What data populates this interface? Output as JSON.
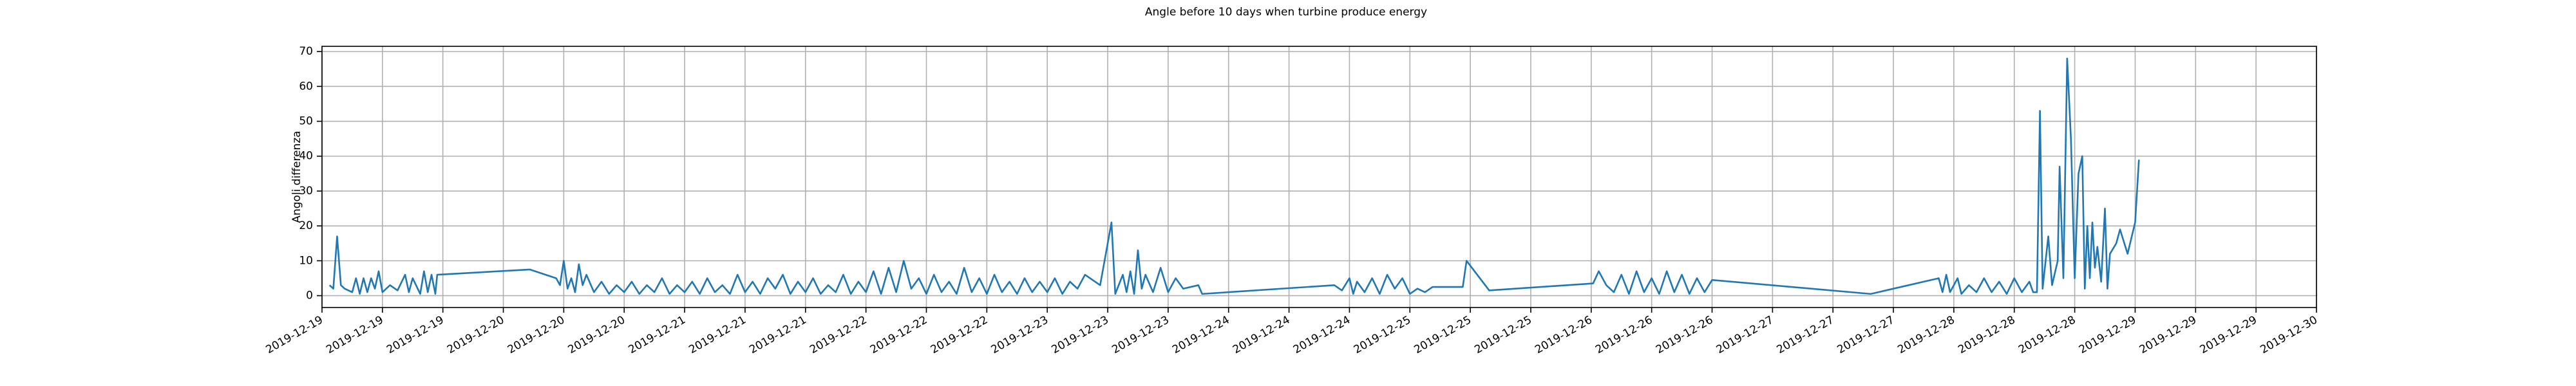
{
  "chart_data": {
    "type": "line",
    "title": "Angle before 10 days when turbine produce energy",
    "y_label": "Angoli differenza",
    "color": "#1f77b4",
    "grid": true,
    "xlim": [
      "2019-12-19 00:00",
      "2019-12-30 00:00"
    ],
    "ylim": [
      -3.4,
      71.5
    ],
    "yticks": [
      0,
      10,
      20,
      30,
      40,
      50,
      60,
      70
    ],
    "xticks": [
      {
        "value": "2019-12-19 00:00",
        "label": "2019-12-19"
      },
      {
        "value": "2019-12-19 08:00",
        "label": "2019-12-19"
      },
      {
        "value": "2019-12-19 16:00",
        "label": "2019-12-19"
      },
      {
        "value": "2019-12-20 00:00",
        "label": "2019-12-20"
      },
      {
        "value": "2019-12-20 08:00",
        "label": "2019-12-20"
      },
      {
        "value": "2019-12-20 16:00",
        "label": "2019-12-20"
      },
      {
        "value": "2019-12-21 00:00",
        "label": "2019-12-21"
      },
      {
        "value": "2019-12-21 08:00",
        "label": "2019-12-21"
      },
      {
        "value": "2019-12-21 16:00",
        "label": "2019-12-21"
      },
      {
        "value": "2019-12-22 00:00",
        "label": "2019-12-22"
      },
      {
        "value": "2019-12-22 08:00",
        "label": "2019-12-22"
      },
      {
        "value": "2019-12-22 16:00",
        "label": "2019-12-22"
      },
      {
        "value": "2019-12-23 00:00",
        "label": "2019-12-23"
      },
      {
        "value": "2019-12-23 08:00",
        "label": "2019-12-23"
      },
      {
        "value": "2019-12-23 16:00",
        "label": "2019-12-23"
      },
      {
        "value": "2019-12-24 00:00",
        "label": "2019-12-24"
      },
      {
        "value": "2019-12-24 08:00",
        "label": "2019-12-24"
      },
      {
        "value": "2019-12-24 16:00",
        "label": "2019-12-24"
      },
      {
        "value": "2019-12-25 00:00",
        "label": "2019-12-25"
      },
      {
        "value": "2019-12-25 08:00",
        "label": "2019-12-25"
      },
      {
        "value": "2019-12-25 16:00",
        "label": "2019-12-25"
      },
      {
        "value": "2019-12-26 00:00",
        "label": "2019-12-26"
      },
      {
        "value": "2019-12-26 08:00",
        "label": "2019-12-26"
      },
      {
        "value": "2019-12-26 16:00",
        "label": "2019-12-26"
      },
      {
        "value": "2019-12-27 00:00",
        "label": "2019-12-27"
      },
      {
        "value": "2019-12-27 08:00",
        "label": "2019-12-27"
      },
      {
        "value": "2019-12-27 16:00",
        "label": "2019-12-27"
      },
      {
        "value": "2019-12-28 00:00",
        "label": "2019-12-28"
      },
      {
        "value": "2019-12-28 08:00",
        "label": "2019-12-28"
      },
      {
        "value": "2019-12-28 16:00",
        "label": "2019-12-28"
      },
      {
        "value": "2019-12-29 00:00",
        "label": "2019-12-29"
      },
      {
        "value": "2019-12-29 08:00",
        "label": "2019-12-29"
      },
      {
        "value": "2019-12-29 16:00",
        "label": "2019-12-29"
      },
      {
        "value": "2019-12-30 00:00",
        "label": "2019-12-30"
      }
    ],
    "x": [
      "2019-12-19 01:00",
      "2019-12-19 01:30",
      "2019-12-19 02:00",
      "2019-12-19 02:30",
      "2019-12-19 03:00",
      "2019-12-19 04:00",
      "2019-12-19 04:30",
      "2019-12-19 05:00",
      "2019-12-19 05:30",
      "2019-12-19 06:00",
      "2019-12-19 06:30",
      "2019-12-19 07:00",
      "2019-12-19 07:30",
      "2019-12-19 08:00",
      "2019-12-19 09:00",
      "2019-12-19 10:00",
      "2019-12-19 11:00",
      "2019-12-19 11:30",
      "2019-12-19 12:00",
      "2019-12-19 13:00",
      "2019-12-19 13:30",
      "2019-12-19 14:00",
      "2019-12-19 14:30",
      "2019-12-19 15:00",
      "2019-12-19 15:15",
      "2019-12-20 03:30",
      "2019-12-20 07:00",
      "2019-12-20 07:30",
      "2019-12-20 08:00",
      "2019-12-20 08:30",
      "2019-12-20 09:00",
      "2019-12-20 09:30",
      "2019-12-20 10:00",
      "2019-12-20 10:30",
      "2019-12-20 11:00",
      "2019-12-20 12:00",
      "2019-12-20 13:00",
      "2019-12-20 14:00",
      "2019-12-20 15:00",
      "2019-12-20 16:00",
      "2019-12-20 17:00",
      "2019-12-20 18:00",
      "2019-12-20 19:00",
      "2019-12-20 20:00",
      "2019-12-20 21:00",
      "2019-12-20 22:00",
      "2019-12-20 23:00",
      "2019-12-21 00:00",
      "2019-12-21 01:00",
      "2019-12-21 02:00",
      "2019-12-21 03:00",
      "2019-12-21 04:00",
      "2019-12-21 05:00",
      "2019-12-21 06:00",
      "2019-12-21 07:00",
      "2019-12-21 08:00",
      "2019-12-21 09:00",
      "2019-12-21 10:00",
      "2019-12-21 11:00",
      "2019-12-21 12:00",
      "2019-12-21 13:00",
      "2019-12-21 14:00",
      "2019-12-21 15:00",
      "2019-12-21 16:00",
      "2019-12-21 17:00",
      "2019-12-21 18:00",
      "2019-12-21 19:00",
      "2019-12-21 20:00",
      "2019-12-21 21:00",
      "2019-12-21 22:00",
      "2019-12-21 23:00",
      "2019-12-22 00:00",
      "2019-12-22 01:00",
      "2019-12-22 02:00",
      "2019-12-22 03:00",
      "2019-12-22 04:00",
      "2019-12-22 05:00",
      "2019-12-22 06:00",
      "2019-12-22 07:00",
      "2019-12-22 08:00",
      "2019-12-22 09:00",
      "2019-12-22 10:00",
      "2019-12-22 11:00",
      "2019-12-22 12:00",
      "2019-12-22 13:00",
      "2019-12-22 14:00",
      "2019-12-22 15:00",
      "2019-12-22 16:00",
      "2019-12-22 17:00",
      "2019-12-22 18:00",
      "2019-12-22 19:00",
      "2019-12-22 20:00",
      "2019-12-22 21:00",
      "2019-12-22 22:00",
      "2019-12-22 23:00",
      "2019-12-23 00:00",
      "2019-12-23 01:00",
      "2019-12-23 02:00",
      "2019-12-23 03:00",
      "2019-12-23 04:00",
      "2019-12-23 05:00",
      "2019-12-23 07:00",
      "2019-12-23 08:30",
      "2019-12-23 09:00",
      "2019-12-23 10:00",
      "2019-12-23 10:30",
      "2019-12-23 11:00",
      "2019-12-23 11:30",
      "2019-12-23 12:00",
      "2019-12-23 12:30",
      "2019-12-23 13:00",
      "2019-12-23 14:00",
      "2019-12-23 15:00",
      "2019-12-23 16:00",
      "2019-12-23 17:00",
      "2019-12-23 18:00",
      "2019-12-23 20:00",
      "2019-12-23 20:30",
      "2019-12-24 14:00",
      "2019-12-24 15:00",
      "2019-12-24 16:00",
      "2019-12-24 16:30",
      "2019-12-24 17:00",
      "2019-12-24 18:00",
      "2019-12-24 19:00",
      "2019-12-24 20:00",
      "2019-12-24 21:00",
      "2019-12-24 22:00",
      "2019-12-24 23:00",
      "2019-12-25 00:00",
      "2019-12-25 01:00",
      "2019-12-25 02:00",
      "2019-12-25 03:00",
      "2019-12-25 07:00",
      "2019-12-25 07:30",
      "2019-12-25 10:30",
      "2019-12-26 00:15",
      "2019-12-26 01:00",
      "2019-12-26 02:00",
      "2019-12-26 03:00",
      "2019-12-26 04:00",
      "2019-12-26 05:00",
      "2019-12-26 06:00",
      "2019-12-26 07:00",
      "2019-12-26 08:00",
      "2019-12-26 09:00",
      "2019-12-26 10:00",
      "2019-12-26 11:00",
      "2019-12-26 12:00",
      "2019-12-26 13:00",
      "2019-12-26 14:00",
      "2019-12-26 15:00",
      "2019-12-26 16:00",
      "2019-12-27 13:00",
      "2019-12-27 22:00",
      "2019-12-27 22:30",
      "2019-12-27 23:00",
      "2019-12-27 23:30",
      "2019-12-28 00:30",
      "2019-12-28 01:00",
      "2019-12-28 02:00",
      "2019-12-28 03:00",
      "2019-12-28 04:00",
      "2019-12-28 05:00",
      "2019-12-28 06:00",
      "2019-12-28 07:00",
      "2019-12-28 08:00",
      "2019-12-28 09:00",
      "2019-12-28 10:00",
      "2019-12-28 10:30",
      "2019-12-28 11:00",
      "2019-12-28 11:24",
      "2019-12-28 11:45",
      "2019-12-28 12:30",
      "2019-12-28 13:00",
      "2019-12-28 13:45",
      "2019-12-28 14:00",
      "2019-12-28 14:30",
      "2019-12-28 15:00",
      "2019-12-28 15:30",
      "2019-12-28 16:00",
      "2019-12-28 16:30",
      "2019-12-28 17:00",
      "2019-12-28 17:20",
      "2019-12-28 17:40",
      "2019-12-28 18:00",
      "2019-12-28 18:20",
      "2019-12-28 18:40",
      "2019-12-28 19:00",
      "2019-12-28 19:30",
      "2019-12-28 20:00",
      "2019-12-28 20:20",
      "2019-12-28 20:40",
      "2019-12-28 21:30",
      "2019-12-28 22:00",
      "2019-12-28 23:00",
      "2019-12-29 00:00",
      "2019-12-29 00:30"
    ],
    "values": [
      3,
      2,
      17,
      3,
      2,
      1,
      5,
      0.5,
      5,
      1,
      5,
      2,
      7,
      1,
      3,
      1.5,
      6,
      1,
      5,
      0.5,
      7,
      1,
      6,
      0.5,
      6,
      7.5,
      5,
      3,
      10,
      2,
      5,
      1,
      9,
      3,
      6,
      1,
      4,
      0.5,
      3,
      1,
      4,
      0.5,
      3,
      1,
      5,
      0.5,
      3,
      1,
      4,
      0.5,
      5,
      1,
      3,
      0.5,
      6,
      1,
      4,
      0.5,
      5,
      2,
      6,
      0.5,
      4,
      1,
      5,
      0.5,
      3,
      1,
      6,
      0.5,
      4,
      1,
      7,
      0.5,
      8,
      1,
      10,
      2,
      5,
      0.5,
      6,
      1,
      4,
      0.5,
      8,
      1,
      5,
      0.5,
      6,
      1,
      4,
      0.5,
      5,
      1,
      4,
      1,
      5,
      0.5,
      4,
      2,
      6,
      3,
      21,
      0.5,
      6,
      1,
      7,
      0.5,
      13,
      2,
      6,
      1,
      8,
      1,
      5,
      2,
      3,
      0.5,
      3,
      1.5,
      5,
      0.5,
      4,
      1,
      5,
      0.5,
      6,
      2,
      5,
      0.5,
      2,
      1,
      2.5,
      2.5,
      10,
      1.5,
      3.5,
      7,
      3,
      1,
      6,
      0.5,
      7,
      1,
      5,
      0.5,
      7,
      1,
      6,
      0.5,
      5,
      1,
      4.5,
      0.5,
      5,
      1,
      6,
      1,
      5,
      0.5,
      3,
      1,
      5,
      1,
      4,
      0.5,
      5,
      1,
      4,
      1,
      1,
      53,
      2,
      17,
      3,
      10,
      37,
      5,
      68,
      45,
      5,
      35,
      40,
      2,
      20,
      5,
      21,
      8,
      14,
      4,
      25,
      2,
      12,
      15,
      19,
      12,
      21,
      39
    ]
  }
}
